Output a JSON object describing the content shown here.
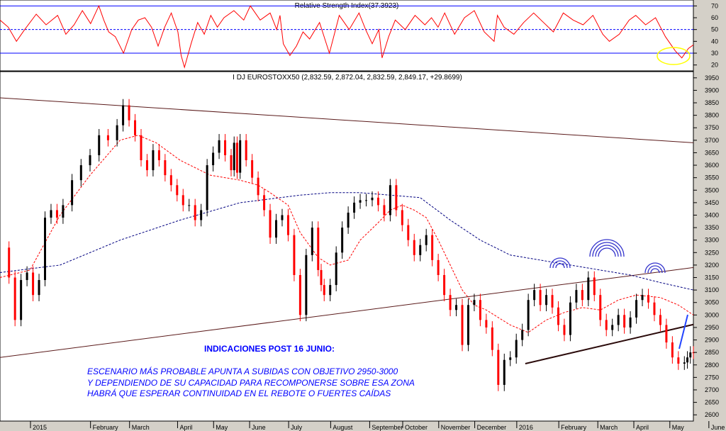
{
  "chart_data": [
    {
      "type": "line",
      "title": "Relative Strength Index(37.3923)",
      "ylim": [
        15,
        75
      ],
      "yticks": [
        20,
        30,
        40,
        50,
        60,
        70
      ],
      "levels": [
        70,
        50,
        30
      ],
      "series": [
        {
          "name": "Relative Strength Index",
          "x": [
            0,
            5,
            10,
            15,
            22,
            28,
            35,
            40,
            45,
            50,
            55,
            60,
            63,
            66,
            70,
            75,
            80,
            84,
            88,
            92,
            96,
            100,
            104,
            108,
            110,
            112,
            116,
            120,
            124,
            128,
            132,
            136,
            142,
            148,
            152,
            158,
            164,
            168,
            170,
            172,
            176,
            180,
            184,
            188,
            194,
            200,
            206,
            212,
            218,
            222,
            226,
            230,
            232,
            236,
            240,
            246,
            252,
            258,
            262,
            266,
            270,
            276,
            282,
            288,
            294,
            300,
            302,
            306,
            312,
            318,
            324,
            330,
            336,
            342,
            348,
            354,
            360,
            366,
            370,
            376,
            382,
            386,
            392,
            398,
            404,
            410,
            414,
            418,
            421
          ],
          "values": [
            58,
            52,
            40,
            50,
            63,
            54,
            62,
            46,
            54,
            66,
            55,
            70,
            58,
            48,
            44,
            30,
            50,
            58,
            60,
            52,
            36,
            52,
            64,
            48,
            28,
            18,
            38,
            56,
            46,
            62,
            52,
            60,
            66,
            58,
            70,
            58,
            64,
            50,
            62,
            38,
            28,
            36,
            48,
            42,
            56,
            30,
            62,
            50,
            64,
            50,
            38,
            50,
            26,
            44,
            58,
            50,
            62,
            54,
            60,
            52,
            64,
            46,
            60,
            66,
            48,
            40,
            62,
            52,
            46,
            56,
            64,
            56,
            48,
            64,
            58,
            54,
            62,
            46,
            40,
            46,
            58,
            62,
            54,
            60,
            44,
            32,
            26,
            34,
            37
          ]
        }
      ]
    },
    {
      "type": "line",
      "title": "I DJ EUROSTOXX50 (2,832.59, 2,872.04, 2,832.59, 2,849.17, +29.8699)",
      "ylim": [
        2575,
        3975
      ],
      "yticks": [
        2600,
        2650,
        2700,
        2750,
        2800,
        2850,
        2900,
        2950,
        3000,
        3050,
        3100,
        3150,
        3200,
        3250,
        3300,
        3350,
        3400,
        3450,
        3500,
        3550,
        3600,
        3650,
        3700,
        3750,
        3800,
        3850,
        3900,
        3950
      ],
      "x_labels": [
        "2015",
        "February",
        "March",
        "April",
        "May",
        "June",
        "July",
        "August",
        "September",
        "October",
        "November",
        "December",
        "2016",
        "February",
        "March",
        "April",
        "May",
        "June"
      ],
      "x_label_pos": [
        0,
        20,
        33,
        49,
        61,
        73,
        86,
        100,
        113,
        124,
        136,
        148,
        162,
        176,
        189,
        201,
        213,
        226
      ],
      "series": [
        {
          "name": "price",
          "x": [
            0,
            3,
            5,
            7,
            9,
            11,
            13,
            15,
            17,
            19,
            21,
            24,
            27,
            30,
            33,
            36,
            39,
            41,
            43,
            45,
            47,
            49,
            51,
            53,
            55,
            57,
            59,
            61,
            63,
            65,
            67,
            69,
            71,
            73,
            75,
            77,
            78,
            79,
            80,
            82,
            84,
            86,
            88,
            90,
            92,
            94,
            96,
            98,
            100,
            102,
            104,
            106,
            107,
            108,
            110,
            112,
            114,
            116,
            118,
            120,
            122,
            124,
            126,
            128,
            130,
            132,
            134,
            136,
            138,
            140,
            142,
            144,
            146,
            148,
            150,
            152,
            154,
            156,
            158,
            160,
            162,
            164,
            166,
            168,
            170,
            172,
            174,
            176,
            178,
            180,
            182,
            184,
            186,
            188,
            190,
            192,
            194,
            196,
            198,
            200,
            202,
            204,
            206,
            208,
            210,
            212,
            214,
            216,
            218,
            220,
            222,
            224,
            226,
            228,
            229,
            230,
            231
          ],
          "values": [
            3270,
            3150,
            2980,
            3140,
            3170,
            3080,
            3140,
            3390,
            3420,
            3390,
            3440,
            3540,
            3600,
            3640,
            3720,
            3700,
            3760,
            3840,
            3780,
            3720,
            3620,
            3580,
            3660,
            3620,
            3560,
            3520,
            3480,
            3440,
            3440,
            3380,
            3420,
            3600,
            3650,
            3700,
            3640,
            3580,
            3690,
            3570,
            3700,
            3620,
            3550,
            3480,
            3420,
            3310,
            3380,
            3400,
            3320,
            3160,
            3000,
            3240,
            3350,
            3180,
            3120,
            3080,
            3120,
            3250,
            3350,
            3410,
            3450,
            3460,
            3460,
            3470,
            3440,
            3400,
            3520,
            3420,
            3360,
            3300,
            3240,
            3280,
            3320,
            3220,
            3160,
            3080,
            3020,
            3040,
            2880,
            3040,
            3060,
            2980,
            2950,
            2860,
            2720,
            2820,
            2830,
            2900,
            2940,
            3060,
            3100,
            3040,
            3080,
            3030,
            2960,
            2920,
            3050,
            3100,
            3060,
            3150,
            3080,
            2980,
            2940,
            2960,
            3000,
            2950,
            2990,
            3060,
            3080,
            3050,
            3000,
            2960,
            2890,
            2830,
            2805,
            2810,
            2830,
            2850,
            2849
          ]
        },
        {
          "name": "moving average 1",
          "x": [
            0,
            10,
            20,
            30,
            40,
            46,
            52,
            60,
            70,
            80,
            86,
            90,
            96,
            100,
            106,
            110,
            116,
            120,
            126,
            130,
            134,
            138,
            142,
            146,
            150,
            154,
            158,
            162,
            166,
            170,
            176,
            182,
            188,
            194,
            200,
            206,
            212,
            220,
            226,
            231
          ],
          "values": [
            3150,
            3180,
            3400,
            3560,
            3700,
            3720,
            3690,
            3620,
            3560,
            3540,
            3520,
            3490,
            3440,
            3330,
            3230,
            3200,
            3220,
            3300,
            3370,
            3420,
            3440,
            3420,
            3390,
            3300,
            3200,
            3100,
            3040,
            3020,
            2990,
            2960,
            2930,
            2980,
            3010,
            3030,
            3020,
            3060,
            3080,
            3070,
            3040,
            3000
          ]
        },
        {
          "name": "moving average 2",
          "x": [
            0,
            20,
            40,
            60,
            80,
            100,
            110,
            120,
            130,
            140,
            150,
            160,
            170,
            180,
            190,
            200,
            210,
            220,
            231
          ],
          "values": [
            3170,
            3200,
            3300,
            3380,
            3450,
            3480,
            3490,
            3490,
            3480,
            3470,
            3380,
            3300,
            3240,
            3220,
            3200,
            3180,
            3160,
            3130,
            3100
          ]
        }
      ],
      "trendlines": [
        {
          "from": [
            0,
            3870
          ],
          "to": [
            231,
            3690
          ]
        },
        {
          "from": [
            0,
            2830
          ],
          "to": [
            231,
            3190
          ]
        },
        {
          "from": [
            175,
            2805
          ],
          "to": [
            231,
            2962
          ]
        }
      ],
      "annotation": {
        "heading": "INDICACIONES POST  16 JUNIO:",
        "lines": [
          "ESCENARIO MÁS PROBABLE APUNTA A SUBIDAS CON OBJETIVO 2950-3000",
          "Y DEPENDIENDO DE SU CAPACIDAD PARA RECOMPONERSE SOBRE ESA ZONA",
          "HABRÁ QUE ESPERAR CONTINUIDAD EN EL REBOTE O FUERTES CAÍDAS"
        ]
      },
      "colors": {
        "price_up": "#000000",
        "price_down": "#ff0000",
        "ma1": "#ff0000",
        "ma2": "#000080",
        "trend": "#5a1a1a",
        "rsi": "#ff0000",
        "level": "#0000ff",
        "arc": "#3333cc",
        "ellipse": "#ffff00",
        "arrow": "#2244ff"
      }
    }
  ]
}
